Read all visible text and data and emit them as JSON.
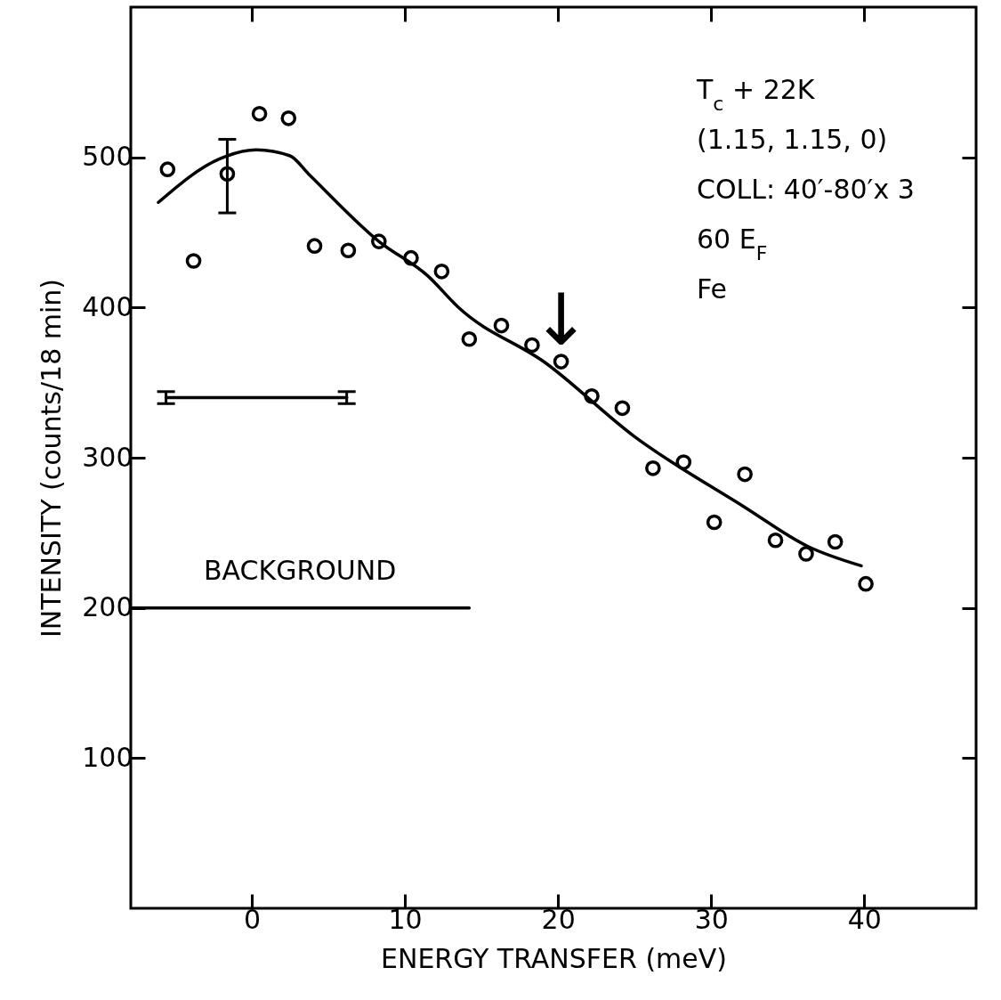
{
  "chart_data": {
    "type": "scatter",
    "xlabel": "ENERGY TRANSFER (meV)",
    "ylabel": "INTENSITY (counts/18 min)",
    "xlim": [
      -7.9,
      47.3
    ],
    "xticks": [
      0,
      10,
      20,
      30,
      40
    ],
    "ylim": [
      0,
      600
    ],
    "yticks": [
      100,
      200,
      300,
      400,
      500
    ],
    "grid": false,
    "series": [
      {
        "marker": "circle",
        "color": "#000000",
        "x": [
          -5.5,
          -3.8,
          -1.6,
          0.5,
          2.4,
          4.1,
          6.3,
          8.3,
          10.4,
          12.4,
          14.2,
          16.3,
          18.3,
          20.2,
          22.2,
          24.2,
          26.2,
          28.2,
          30.2,
          32.2,
          34.2,
          36.2,
          38.1,
          40.1
        ],
        "values": [
          492,
          431,
          489,
          529,
          526,
          441,
          438,
          444,
          433,
          424,
          379,
          388,
          375,
          364,
          341,
          333,
          293,
          297,
          257,
          289,
          245,
          236,
          244,
          216
        ],
        "errors": [
          null,
          null,
          [
            463,
            512
          ],
          null,
          null,
          null,
          null,
          null,
          null,
          null,
          null,
          null,
          null,
          null,
          null,
          null,
          null,
          null,
          null,
          null,
          null,
          null,
          null,
          null
        ]
      },
      {
        "type": "line",
        "marker": "none",
        "color": "#000000",
        "x": [
          -6.1,
          -2.1,
          0.3,
          2.5,
          3.7,
          8.3,
          11.5,
          13.5,
          19.2,
          25,
          32.2,
          36.3,
          39.8
        ],
        "values": [
          470,
          499,
          505,
          501,
          489,
          444,
          421,
          400,
          363,
          314,
          267,
          241,
          228
        ]
      },
      {
        "type": "line",
        "marker": "none",
        "name": "BACKGROUND",
        "color": "#000000",
        "x": [
          -7.9,
          14.2
        ],
        "values": [
          200,
          200
        ]
      },
      {
        "type": "line",
        "marker": "none",
        "color": "#000000",
        "x": [
          -5.6,
          6.2
        ],
        "values": [
          340,
          340
        ],
        "errors": [
          [
            336,
            344
          ],
          [
            336,
            344
          ]
        ]
      }
    ],
    "annotations": [
      "T$_{c}$ + 22K",
      "(1.15, 1.15, 0)",
      "COLL: 40′-80′x 3",
      "60 E$_{F}$",
      "Fe",
      {
        "text": "↓",
        "x": 20.2,
        "y": 364
      }
    ]
  }
}
